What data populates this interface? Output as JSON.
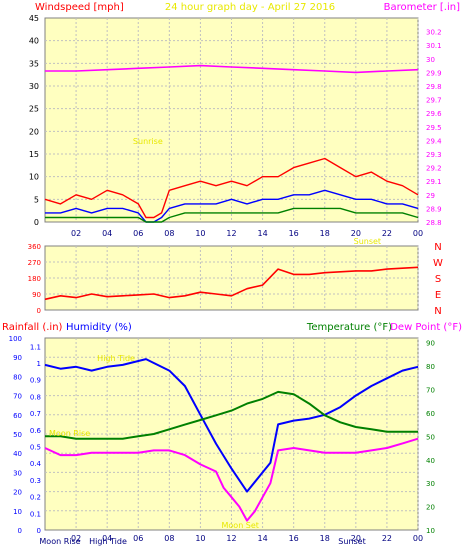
{
  "header": {
    "left_label": "Windspeed [mph]",
    "title": "24 hour graph day - April 27 2016",
    "right_label": "Barometer [.in]"
  },
  "labels_bottom": {
    "rainfall": "Rainfall (.in)",
    "humidity": "Humidity (%)",
    "temperature": "Temperature (°F)",
    "dewpoint": "Dew Point (°F)"
  },
  "colors": {
    "panel_bg": "#ffffc0",
    "red": "#ff0000",
    "blue": "#0000ff",
    "green": "#008000",
    "magenta": "#ff00ff",
    "yellow": "#e8e800"
  },
  "events": [
    {
      "text": "Moon Rise",
      "xh": 0.0,
      "yv": 0.55,
      "color": "#e8e800"
    },
    {
      "text": "High Tide",
      "xh": 3.1,
      "yv": 1.0,
      "color": "#e8e800"
    },
    {
      "text": "Sunrise",
      "xh": 5.4,
      "yv": 2.3,
      "color": "#e8e800"
    },
    {
      "text": "Moon Set",
      "xh": 11.1,
      "yv": 0.0,
      "color": "#e8e800"
    },
    {
      "text": "Sunset",
      "xh": 19.6,
      "yv": 1.7,
      "color": "#e8e800"
    }
  ],
  "bottom_axis_events": [
    "Moon Rise",
    "High Tide",
    "Sunset"
  ],
  "chart_data": [
    {
      "id": "wind",
      "type": "line",
      "title": "24 hour graph day - April 27 2016",
      "xlim": [
        0,
        24
      ],
      "x_ticks": [
        "02",
        "04",
        "06",
        "08",
        "10",
        "12",
        "14",
        "16",
        "18",
        "20",
        "22",
        "00"
      ],
      "left_axis": {
        "label": "Windspeed [mph]",
        "lim": [
          0,
          45
        ],
        "ticks": [
          0,
          5,
          10,
          15,
          20,
          25,
          30,
          35,
          40,
          45
        ]
      },
      "right_axis": {
        "label": "Barometer [.in]",
        "lim": [
          28.8,
          30.3
        ],
        "ticks": [
          "28.8",
          "28.9",
          "29",
          "29.1",
          "29.2",
          "29.3",
          "29.4",
          "29.5",
          "29.6",
          "29.7",
          "29.8",
          "29.9",
          "30",
          "30.1",
          "30.2"
        ]
      },
      "series": [
        {
          "role": "gust",
          "color": "#ff0000",
          "axis": "left",
          "x": [
            0,
            1,
            2,
            3,
            4,
            5,
            6,
            6.5,
            7,
            7.5,
            8,
            9,
            10,
            11,
            12,
            13,
            14,
            15,
            16,
            17,
            18,
            19,
            20,
            21,
            22,
            23,
            24
          ],
          "y": [
            5,
            4,
            6,
            5,
            7,
            6,
            4,
            1,
            1,
            2,
            7,
            8,
            9,
            8,
            9,
            8,
            10,
            10,
            12,
            13,
            14,
            12,
            10,
            11,
            9,
            8,
            6
          ]
        },
        {
          "role": "wind",
          "color": "#0000ff",
          "axis": "left",
          "x": [
            0,
            1,
            2,
            3,
            4,
            5,
            6,
            6.5,
            7,
            7.5,
            8,
            9,
            10,
            11,
            12,
            13,
            14,
            15,
            16,
            17,
            18,
            19,
            20,
            21,
            22,
            23,
            24
          ],
          "y": [
            2,
            2,
            3,
            2,
            3,
            3,
            2,
            0,
            0,
            1,
            3,
            4,
            4,
            4,
            5,
            4,
            5,
            5,
            6,
            6,
            7,
            6,
            5,
            5,
            4,
            4,
            3
          ]
        },
        {
          "role": "wind_avg",
          "color": "#008000",
          "axis": "left",
          "x": [
            0,
            1,
            2,
            3,
            4,
            5,
            6,
            6.5,
            7,
            7.5,
            8,
            9,
            10,
            11,
            12,
            13,
            14,
            15,
            16,
            17,
            18,
            19,
            20,
            21,
            22,
            23,
            24
          ],
          "y": [
            1,
            1,
            1,
            1,
            1,
            1,
            1,
            0,
            0,
            0,
            1,
            2,
            2,
            2,
            2,
            2,
            2,
            2,
            3,
            3,
            3,
            3,
            2,
            2,
            2,
            2,
            1
          ]
        },
        {
          "role": "barometer",
          "color": "#ff00ff",
          "axis": "right",
          "x": [
            0,
            2,
            4,
            6,
            8,
            10,
            12,
            14,
            16,
            18,
            20,
            22,
            24
          ],
          "y": [
            29.91,
            29.91,
            29.92,
            29.93,
            29.94,
            29.95,
            29.94,
            29.93,
            29.92,
            29.91,
            29.9,
            29.91,
            29.92
          ]
        }
      ]
    },
    {
      "id": "direction",
      "type": "line",
      "xlim": [
        0,
        24
      ],
      "left_axis": {
        "lim": [
          0,
          360
        ],
        "ticks": [
          0,
          90,
          180,
          270,
          360
        ]
      },
      "right_labels": [
        "N",
        "W",
        "S",
        "E",
        "N"
      ],
      "series": [
        {
          "role": "wind_direction",
          "color": "#ff0000",
          "x": [
            0,
            1,
            2,
            3,
            4,
            5,
            6,
            7,
            8,
            9,
            10,
            11,
            12,
            13,
            14,
            15,
            16,
            17,
            18,
            19,
            20,
            21,
            22,
            23,
            24
          ],
          "y": [
            60,
            80,
            70,
            90,
            75,
            80,
            85,
            90,
            70,
            80,
            100,
            90,
            80,
            120,
            140,
            230,
            200,
            200,
            210,
            215,
            220,
            220,
            230,
            235,
            240
          ]
        }
      ]
    },
    {
      "id": "climate",
      "type": "line",
      "xlim": [
        0,
        24
      ],
      "x_ticks": [
        "02",
        "04",
        "06",
        "08",
        "10",
        "12",
        "14",
        "16",
        "18",
        "20",
        "22",
        "00"
      ],
      "left_axis_rain": {
        "label": "Rainfall (.in)",
        "lim": [
          0,
          1.15
        ],
        "ticks": [
          "0",
          "0.1",
          "0.2",
          "0.3",
          "0.4",
          "0.5",
          "0.6",
          "0.7",
          "0.8",
          "0.9",
          "1",
          "1.1"
        ]
      },
      "left_axis_humidity": {
        "label": "Humidity (%)",
        "lim": [
          0,
          100
        ],
        "ticks": [
          0,
          10,
          20,
          30,
          40,
          50,
          60,
          70,
          80,
          90,
          100
        ]
      },
      "right_axis": {
        "label": "Temperature (°F)",
        "lim": [
          10,
          92
        ],
        "ticks": [
          10,
          20,
          30,
          40,
          50,
          60,
          70,
          80,
          90
        ]
      },
      "series": [
        {
          "role": "humidity",
          "color": "#0000ff",
          "axis": "humidity",
          "x": [
            0,
            1,
            2,
            3,
            4,
            5,
            6,
            6.5,
            7,
            8,
            9,
            10,
            11,
            12,
            13,
            14,
            14.5,
            15,
            16,
            17,
            18,
            19,
            20,
            21,
            22,
            23,
            24
          ],
          "y": [
            86,
            84,
            85,
            83,
            85,
            86,
            88,
            89,
            87,
            83,
            75,
            60,
            45,
            32,
            20,
            30,
            35,
            55,
            57,
            58,
            60,
            64,
            70,
            75,
            79,
            83,
            85
          ]
        },
        {
          "role": "temperature",
          "color": "#008000",
          "axis": "right",
          "x": [
            0,
            1,
            2,
            3,
            4,
            5,
            6,
            7,
            8,
            9,
            10,
            11,
            12,
            13,
            14,
            15,
            16,
            17,
            18,
            19,
            20,
            21,
            22,
            23,
            24
          ],
          "y": [
            50,
            50,
            49,
            49,
            49,
            49,
            50,
            51,
            53,
            55,
            57,
            59,
            61,
            64,
            66,
            69,
            68,
            64,
            59,
            56,
            54,
            53,
            52,
            52,
            52
          ]
        },
        {
          "role": "dew_point",
          "color": "#ff00ff",
          "axis": "right",
          "x": [
            0,
            1,
            2,
            3,
            4,
            5,
            6,
            7,
            8,
            9,
            10,
            11,
            11.5,
            12,
            12.5,
            13,
            13.5,
            14,
            14.5,
            15,
            16,
            17,
            18,
            19,
            20,
            21,
            22,
            23,
            24
          ],
          "y": [
            45,
            42,
            42,
            43,
            43,
            43,
            43,
            44,
            44,
            42,
            38,
            35,
            28,
            24,
            20,
            14,
            18,
            24,
            30,
            44,
            45,
            44,
            43,
            43,
            43,
            44,
            45,
            47,
            49
          ]
        }
      ]
    }
  ]
}
